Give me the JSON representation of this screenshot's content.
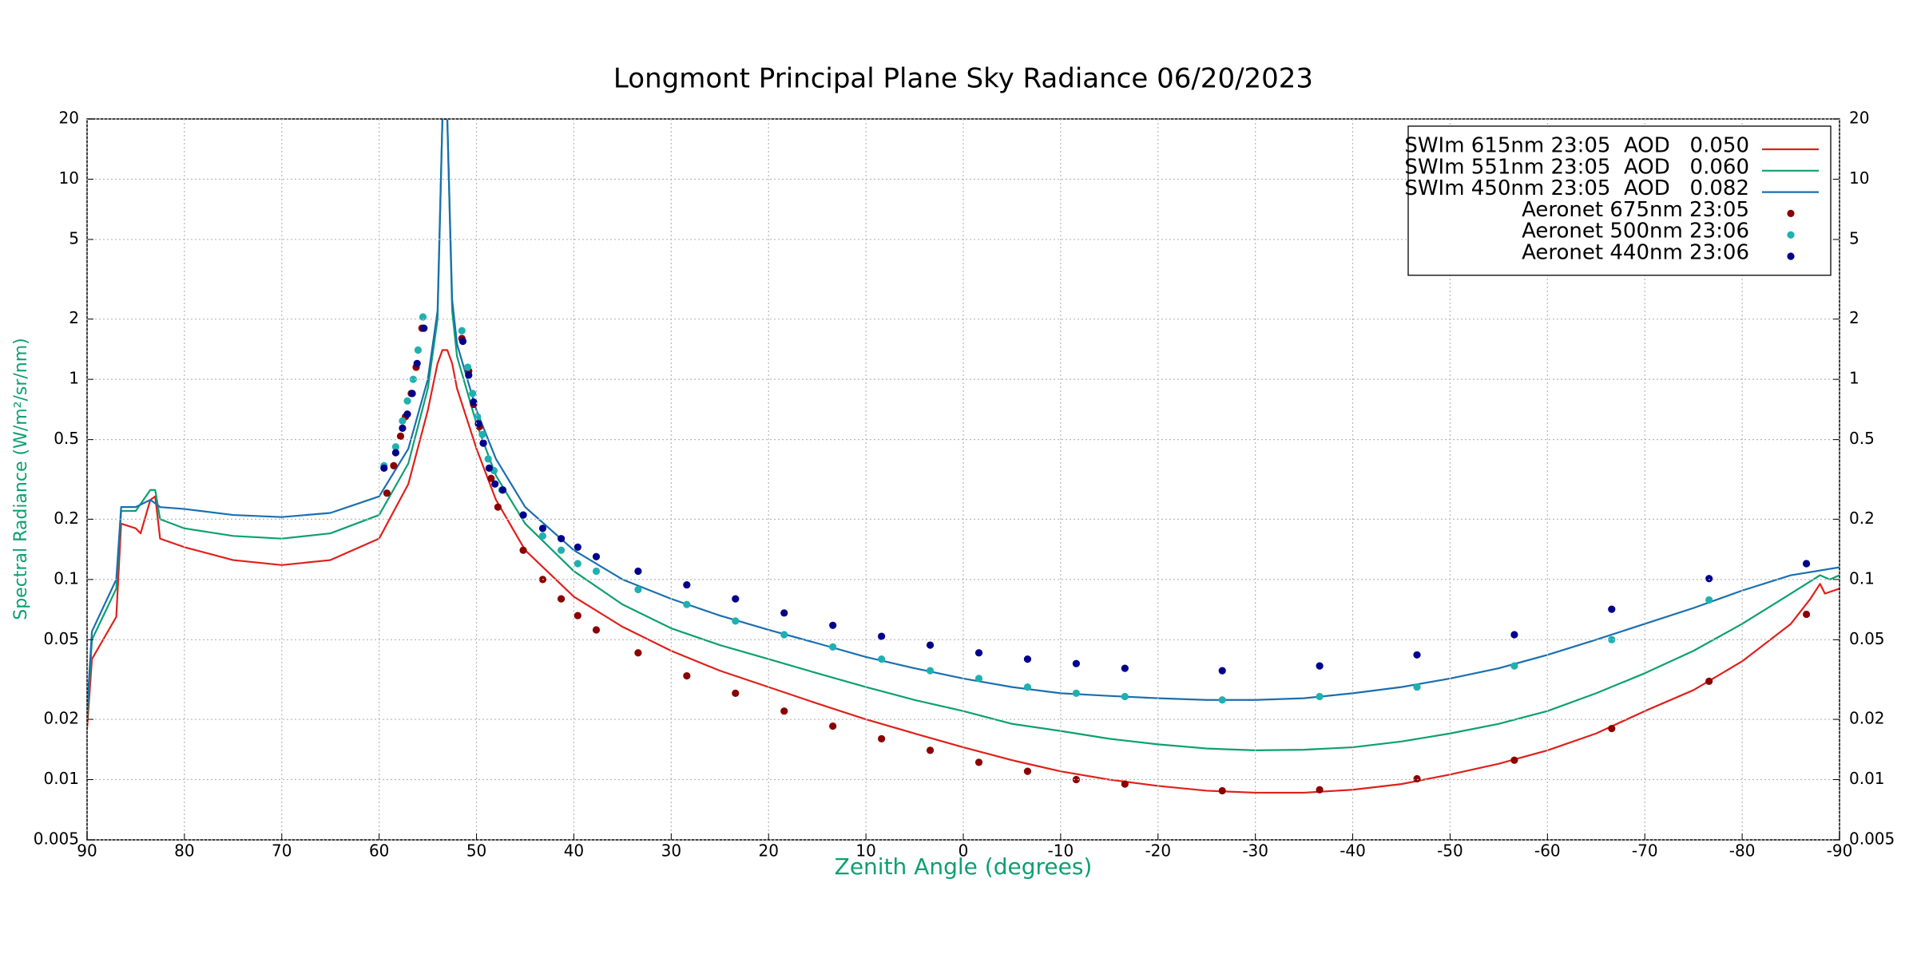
{
  "chart_data": {
    "type": "line",
    "title": "Longmont Principal Plane Sky Radiance 06/20/2023",
    "x_label": "Zenith Angle (degrees)",
    "y_label": "Spectral Radiance (W/m²/sr/nm)",
    "xlim": [
      90,
      -90
    ],
    "xticks": [
      90,
      80,
      70,
      60,
      50,
      40,
      30,
      20,
      10,
      0,
      -10,
      -20,
      -30,
      -40,
      -50,
      -60,
      -70,
      -80,
      -90
    ],
    "ylim": [
      0.005,
      20
    ],
    "yticks": [
      0.005,
      0.01,
      0.02,
      0.05,
      0.1,
      0.2,
      0.5,
      1,
      2,
      5,
      10,
      20
    ],
    "log_y": true,
    "grid": true,
    "legend": "upper right",
    "series": [
      {
        "name": "SWIm 615nm 23:05  AOD   0.050",
        "color": "#e0201b",
        "mode": "line",
        "x": [
          90,
          89.5,
          87,
          86.5,
          85,
          84.5,
          83.5,
          83,
          82.5,
          80,
          75,
          70,
          65,
          60,
          57,
          55,
          54,
          53.5,
          53,
          52.5,
          52,
          50,
          48,
          45,
          40,
          35,
          30,
          25,
          20,
          15,
          10,
          5,
          0,
          -5,
          -10,
          -15,
          -20,
          -25,
          -30,
          -35,
          -40,
          -45,
          -50,
          -55,
          -60,
          -65,
          -70,
          -75,
          -80,
          -85,
          -87,
          -88,
          -88.5,
          -90
        ],
        "values": [
          0.018,
          0.04,
          0.065,
          0.19,
          0.18,
          0.17,
          0.25,
          0.26,
          0.16,
          0.145,
          0.125,
          0.118,
          0.125,
          0.16,
          0.3,
          0.7,
          1.2,
          1.4,
          1.4,
          1.2,
          0.9,
          0.45,
          0.25,
          0.14,
          0.082,
          0.058,
          0.044,
          0.035,
          0.029,
          0.024,
          0.02,
          0.017,
          0.0145,
          0.0125,
          0.011,
          0.01,
          0.0093,
          0.0088,
          0.0086,
          0.0086,
          0.0089,
          0.0095,
          0.0106,
          0.012,
          0.014,
          0.017,
          0.022,
          0.028,
          0.039,
          0.06,
          0.08,
          0.095,
          0.085,
          0.09
        ]
      },
      {
        "name": "SWIm 551nm 23:05  AOD   0.060",
        "color": "#0ca070",
        "mode": "line",
        "x": [
          90,
          89.5,
          87,
          86.5,
          85,
          83.5,
          83,
          82.5,
          80,
          75,
          70,
          65,
          60,
          57,
          55,
          54,
          53.5,
          53,
          52.5,
          52,
          50,
          48,
          45,
          40,
          35,
          30,
          25,
          20,
          15,
          10,
          5,
          0,
          -5,
          -10,
          -15,
          -20,
          -25,
          -30,
          -35,
          -40,
          -45,
          -50,
          -55,
          -60,
          -65,
          -70,
          -75,
          -80,
          -85,
          -88,
          -89,
          -90
        ],
        "values": [
          0.02,
          0.05,
          0.09,
          0.22,
          0.22,
          0.28,
          0.28,
          0.2,
          0.18,
          0.165,
          0.16,
          0.17,
          0.21,
          0.38,
          0.9,
          2,
          20,
          20,
          2.2,
          1.3,
          0.6,
          0.33,
          0.19,
          0.11,
          0.075,
          0.057,
          0.047,
          0.04,
          0.034,
          0.029,
          0.025,
          0.022,
          0.019,
          0.0175,
          0.016,
          0.015,
          0.0143,
          0.014,
          0.0141,
          0.0145,
          0.0155,
          0.017,
          0.019,
          0.022,
          0.027,
          0.034,
          0.044,
          0.06,
          0.085,
          0.105,
          0.1,
          0.105
        ]
      },
      {
        "name": "SWIm 450nm 23:05  AOD   0.082",
        "color": "#1a6fb0",
        "mode": "line",
        "x": [
          90,
          89.5,
          87,
          86.5,
          85,
          83.5,
          83,
          82.5,
          80,
          75,
          70,
          65,
          60,
          57,
          55,
          54,
          53.5,
          53,
          52.5,
          52,
          50,
          48,
          45,
          40,
          35,
          30,
          25,
          20,
          15,
          10,
          5,
          0,
          -5,
          -10,
          -15,
          -20,
          -25,
          -30,
          -35,
          -40,
          -45,
          -50,
          -55,
          -60,
          -65,
          -70,
          -75,
          -80,
          -85,
          -90
        ],
        "values": [
          0.022,
          0.055,
          0.1,
          0.23,
          0.23,
          0.25,
          0.24,
          0.23,
          0.225,
          0.21,
          0.205,
          0.215,
          0.26,
          0.45,
          1,
          2.2,
          20,
          20,
          2.5,
          1.5,
          0.7,
          0.4,
          0.23,
          0.14,
          0.1,
          0.08,
          0.066,
          0.056,
          0.048,
          0.041,
          0.036,
          0.032,
          0.029,
          0.027,
          0.0262,
          0.0255,
          0.025,
          0.025,
          0.0255,
          0.027,
          0.029,
          0.032,
          0.036,
          0.042,
          0.05,
          0.06,
          0.072,
          0.088,
          0.105,
          0.115
        ]
      },
      {
        "name": "Aeronet 675nm 23:05",
        "color": "#8b0000",
        "mode": "markers",
        "x": [
          59.2,
          58.5,
          57.8,
          57.3,
          56.7,
          56.2,
          55.6,
          51.5,
          50.8,
          50.3,
          49.7,
          49.3,
          48.5,
          47.8,
          45.2,
          43.2,
          41.3,
          39.6,
          37.7,
          33.4,
          28.4,
          23.4,
          18.4,
          13.4,
          8.4,
          3.4,
          -1.6,
          -6.6,
          -11.6,
          -16.6,
          -26.6,
          -36.6,
          -46.6,
          -56.6,
          -66.6,
          -76.6,
          -86.6
        ],
        "values": [
          0.27,
          0.37,
          0.52,
          0.65,
          0.85,
          1.15,
          1.8,
          1.6,
          1.1,
          0.75,
          0.58,
          0.48,
          0.32,
          0.23,
          0.14,
          0.1,
          0.08,
          0.066,
          0.056,
          0.043,
          0.033,
          0.027,
          0.022,
          0.0185,
          0.016,
          0.014,
          0.0122,
          0.011,
          0.01,
          0.0095,
          0.0088,
          0.0089,
          0.0101,
          0.0125,
          0.018,
          0.031,
          0.067
        ]
      },
      {
        "name": "Aeronet 500nm 23:06",
        "color": "#20b0b0",
        "mode": "markers",
        "x": [
          59.5,
          58.3,
          57.6,
          57.1,
          56.5,
          56.0,
          55.5,
          51.5,
          50.9,
          50.4,
          49.9,
          49.4,
          48.8,
          48.2,
          47.4,
          45.2,
          43.2,
          41.3,
          39.6,
          37.7,
          33.4,
          28.4,
          23.4,
          18.4,
          13.4,
          8.4,
          3.4,
          -1.6,
          -6.6,
          -11.6,
          -16.6,
          -26.6,
          -36.6,
          -46.6,
          -56.6,
          -66.6,
          -76.6,
          -86.6
        ],
        "values": [
          0.37,
          0.46,
          0.62,
          0.78,
          1.0,
          1.4,
          2.05,
          1.75,
          1.15,
          0.85,
          0.65,
          0.53,
          0.4,
          0.35,
          0.28,
          0.21,
          0.165,
          0.14,
          0.12,
          0.11,
          0.089,
          0.075,
          0.062,
          0.053,
          0.046,
          0.04,
          0.035,
          0.032,
          0.029,
          0.027,
          0.026,
          0.025,
          0.026,
          0.029,
          0.037,
          0.05,
          0.079,
          0.12
        ]
      },
      {
        "name": "Aeronet 440nm 23:06",
        "color": "#00008b",
        "mode": "markers",
        "x": [
          59.5,
          58.3,
          57.6,
          57.1,
          56.6,
          56.1,
          55.4,
          51.4,
          50.8,
          50.3,
          49.8,
          49.3,
          48.7,
          48.1,
          47.3,
          45.2,
          43.2,
          41.3,
          39.6,
          37.7,
          33.4,
          28.4,
          23.4,
          18.4,
          13.4,
          8.4,
          3.4,
          -1.6,
          -6.6,
          -11.6,
          -16.6,
          -26.6,
          -36.6,
          -46.6,
          -56.6,
          -66.6,
          -76.6,
          -86.6
        ],
        "values": [
          0.36,
          0.43,
          0.57,
          0.67,
          0.85,
          1.2,
          1.8,
          1.55,
          1.05,
          0.77,
          0.6,
          0.48,
          0.36,
          0.3,
          0.28,
          0.21,
          0.18,
          0.16,
          0.145,
          0.13,
          0.11,
          0.094,
          0.08,
          0.068,
          0.059,
          0.052,
          0.047,
          0.043,
          0.04,
          0.038,
          0.036,
          0.035,
          0.037,
          0.042,
          0.053,
          0.071,
          0.101,
          0.12
        ]
      }
    ]
  }
}
